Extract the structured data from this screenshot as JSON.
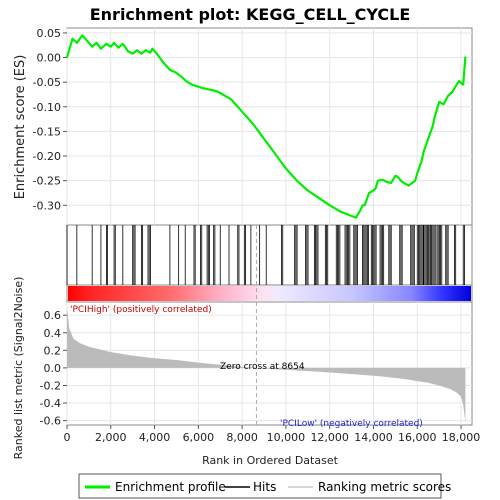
{
  "chart_data": {
    "type": "line",
    "title": "Enrichment plot: KEGG_CELL_CYCLE",
    "ylabel": "Enrichment score (ES)",
    "ylabel_bottom": "Ranked list metric (Signal2Noise)",
    "xlabel": "Rank in Ordered Dataset",
    "x_ticks": [
      0,
      2000,
      4000,
      6000,
      8000,
      10000,
      12000,
      14000,
      16000,
      18000
    ],
    "x_tick_labels": [
      "0",
      "2,000",
      "4,000",
      "6,000",
      "8,000",
      "10,000",
      "12,000",
      "14,000",
      "16,000",
      "18,000"
    ],
    "xlim": [
      0,
      18500
    ],
    "es_ylim": [
      -0.34,
      0.06
    ],
    "es_ticks": [
      0.05,
      0.0,
      -0.05,
      -0.1,
      -0.15,
      -0.2,
      -0.25,
      -0.3
    ],
    "es_tick_labels": [
      "0.05",
      "0.00",
      "-0.05",
      "-0.10",
      "-0.15",
      "-0.20",
      "-0.25",
      "-0.30"
    ],
    "metric_ylim": [
      -0.65,
      0.75
    ],
    "metric_ticks": [
      0.6,
      0.4,
      0.2,
      0.0,
      -0.2,
      -0.4,
      -0.6
    ],
    "metric_tick_labels": [
      "0.6",
      "0.4",
      "0.2",
      "0.0",
      "-0.2",
      "-0.4",
      "-0.6"
    ],
    "grid": true,
    "legend_placement": "bottom",
    "series": [
      {
        "name": "Enrichment profile",
        "color": "#00ee00",
        "x": [
          0,
          250,
          450,
          700,
          900,
          1150,
          1350,
          1550,
          1800,
          2000,
          2150,
          2350,
          2550,
          2800,
          3000,
          3200,
          3400,
          3600,
          3800,
          3900,
          4100,
          4400,
          4700,
          4950,
          5200,
          5450,
          5700,
          5900,
          6200,
          6500,
          6800,
          7000,
          7500,
          8000,
          8500,
          9000,
          9500,
          10000,
          10500,
          11000,
          11500,
          12000,
          12500,
          12900,
          13200,
          13400,
          13500,
          13600,
          13800,
          14000,
          14100,
          14200,
          14400,
          14600,
          14800,
          15000,
          15100,
          15300,
          15600,
          15900,
          16000,
          16200,
          16300,
          16500,
          16700,
          16800,
          17000,
          17200,
          17400,
          17600,
          17800,
          17900,
          18100,
          18200
        ],
        "y": [
          0.0,
          0.038,
          0.03,
          0.045,
          0.035,
          0.022,
          0.03,
          0.018,
          0.028,
          0.022,
          0.03,
          0.02,
          0.028,
          0.012,
          0.008,
          0.015,
          0.008,
          0.015,
          0.01,
          0.018,
          0.008,
          -0.01,
          -0.025,
          -0.03,
          -0.038,
          -0.048,
          -0.055,
          -0.058,
          -0.062,
          -0.065,
          -0.068,
          -0.072,
          -0.085,
          -0.11,
          -0.135,
          -0.165,
          -0.195,
          -0.225,
          -0.25,
          -0.27,
          -0.285,
          -0.3,
          -0.313,
          -0.32,
          -0.325,
          -0.31,
          -0.3,
          -0.3,
          -0.275,
          -0.27,
          -0.265,
          -0.25,
          -0.248,
          -0.252,
          -0.255,
          -0.24,
          -0.242,
          -0.252,
          -0.26,
          -0.25,
          -0.235,
          -0.21,
          -0.19,
          -0.165,
          -0.14,
          -0.12,
          -0.09,
          -0.095,
          -0.078,
          -0.07,
          -0.055,
          -0.048,
          -0.055,
          0.002
        ]
      }
    ],
    "hits_count_approx": 120,
    "ranking_metric": {
      "name": "Ranking metric scores",
      "color": "#bbbbbb",
      "x": [
        0,
        100,
        300,
        600,
        1000,
        1500,
        2000,
        3000,
        4000,
        5000,
        6000,
        7000,
        8000,
        8654,
        9500,
        10500,
        11500,
        12500,
        13500,
        14500,
        15500,
        16000,
        16500,
        17000,
        17500,
        17800,
        18000,
        18100,
        18200
      ],
      "y": [
        0.7,
        0.45,
        0.33,
        0.28,
        0.24,
        0.21,
        0.18,
        0.14,
        0.11,
        0.09,
        0.06,
        0.035,
        0.012,
        0.0,
        -0.015,
        -0.03,
        -0.045,
        -0.06,
        -0.08,
        -0.1,
        -0.13,
        -0.15,
        -0.17,
        -0.2,
        -0.24,
        -0.28,
        -0.33,
        -0.42,
        -0.62
      ]
    },
    "zero_cross": 8654,
    "annotations": {
      "zero_cross_label": "Zero cross at 8654",
      "positive_label": "'PCIHigh' (positively correlated)",
      "negative_label": "'PCILow' (negatively correlated)"
    },
    "legend_entries": [
      "Enrichment profile",
      "Hits",
      "Ranking metric scores"
    ],
    "colors": {
      "es_line": "#00ee00",
      "hit_line": "#000000",
      "metric_fill": "#bbbbbb",
      "positive": "#ff0000",
      "negative": "#0000ff"
    }
  }
}
